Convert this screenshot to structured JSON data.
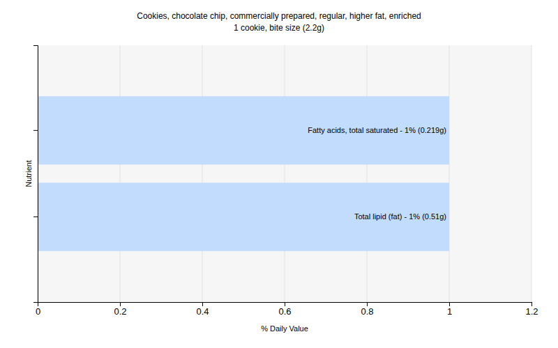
{
  "chart_data": {
    "type": "bar",
    "orientation": "horizontal",
    "title": "Cookies, chocolate chip, commercially prepared, regular, higher fat, enriched",
    "subtitle": "1 cookie, bite size (2.2g)",
    "x_label": "% Daily Value",
    "y_label": "Nutrient",
    "categories": [
      null,
      null
    ],
    "values": [
      1,
      1
    ],
    "value_labels": [
      "Fatty acids, total saturated - 1% (0.219g)",
      "Total lipid (fat) - 1% (0.51g)"
    ],
    "color": "#c2dcfd",
    "xlim": [
      0,
      1.2
    ],
    "xticks": [
      0,
      0.2,
      0.4,
      0.6,
      0.8,
      1,
      1.2
    ],
    "grid": true,
    "data_labels": true,
    "tick_labels": "x"
  }
}
